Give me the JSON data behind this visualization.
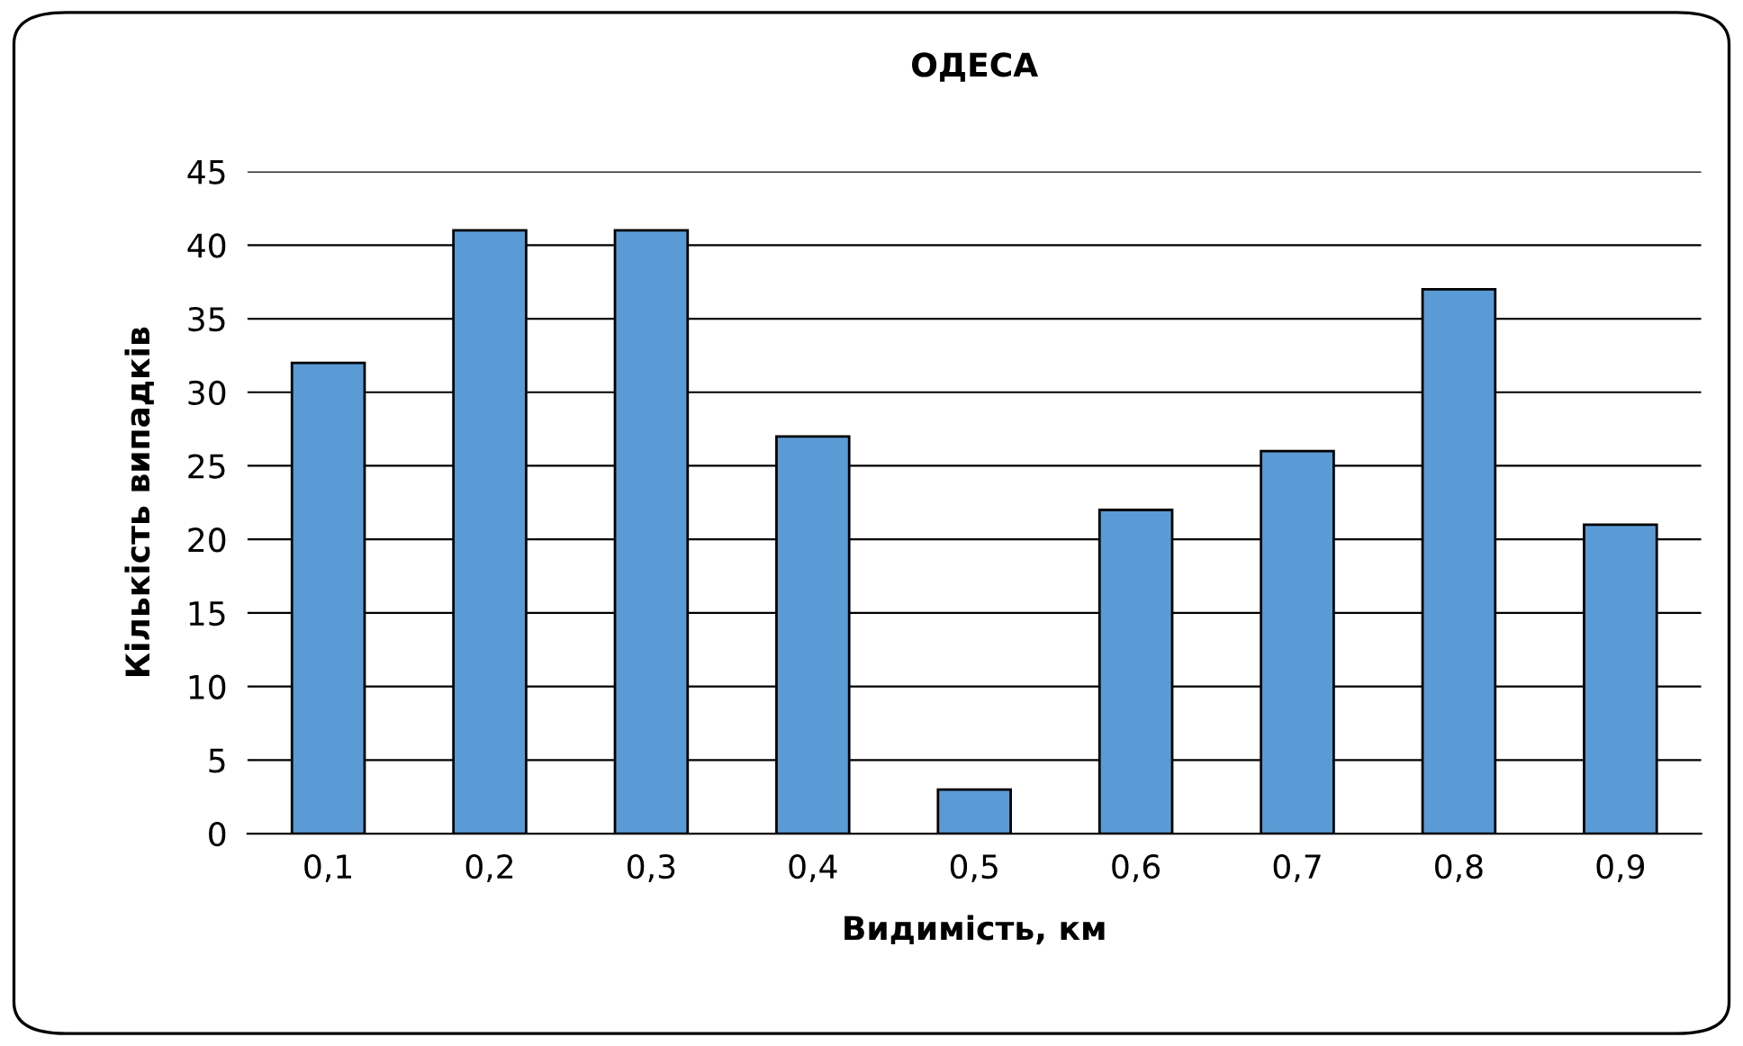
{
  "chart_data": {
    "type": "bar",
    "title": "ОДЕСА",
    "xlabel": "Видимість, км",
    "ylabel": "Кількість випадків",
    "categories": [
      "0,1",
      "0,2",
      "0,3",
      "0,4",
      "0,5",
      "0,6",
      "0,7",
      "0,8",
      "0,9"
    ],
    "values": [
      32,
      41,
      41,
      27,
      3,
      22,
      26,
      37,
      21
    ],
    "color": "#5b9bd5",
    "ylim": [
      0,
      45
    ],
    "yticks": [
      0,
      5,
      10,
      15,
      20,
      25,
      30,
      35,
      40,
      45
    ],
    "grid": "y",
    "legend": false
  }
}
